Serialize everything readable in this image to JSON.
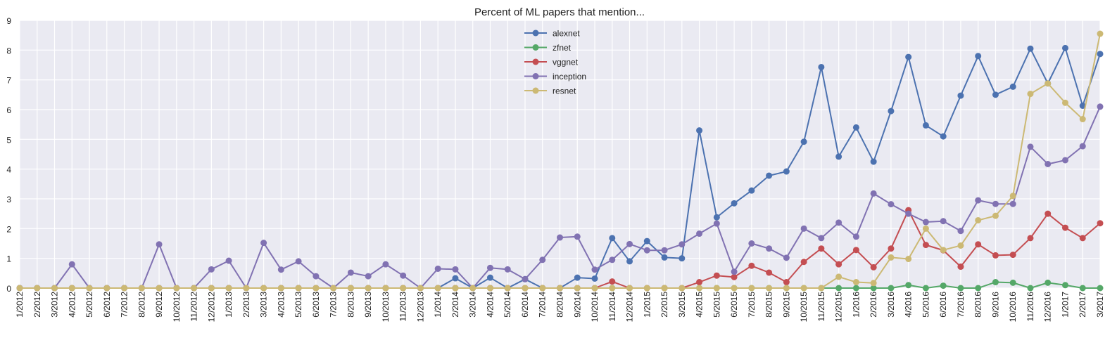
{
  "chart_data": {
    "type": "line",
    "title": "Percent of ML papers that mention...",
    "xlabel": "",
    "ylabel": "",
    "ylim": [
      0,
      9
    ],
    "yticks": [
      0,
      1,
      2,
      3,
      4,
      5,
      6,
      7,
      8,
      9
    ],
    "grid": true,
    "legend_position": "top-center",
    "categories": [
      "1/2012",
      "2/2012",
      "3/2012",
      "4/2012",
      "5/2012",
      "6/2012",
      "7/2012",
      "8/2012",
      "9/2012",
      "10/2012",
      "11/2012",
      "12/2012",
      "1/2013",
      "2/2013",
      "3/2013",
      "4/2013",
      "5/2013",
      "6/2013",
      "7/2013",
      "8/2013",
      "9/2013",
      "10/2013",
      "11/2013",
      "12/2013",
      "1/2014",
      "2/2014",
      "3/2014",
      "4/2014",
      "5/2014",
      "6/2014",
      "7/2014",
      "8/2014",
      "9/2014",
      "10/2014",
      "11/2014",
      "12/2014",
      "1/2015",
      "2/2015",
      "3/2015",
      "4/2015",
      "5/2015",
      "6/2015",
      "7/2015",
      "8/2015",
      "9/2015",
      "10/2015",
      "11/2015",
      "12/2015",
      "1/2016",
      "2/2016",
      "3/2016",
      "4/2016",
      "5/2016",
      "6/2016",
      "7/2016",
      "8/2016",
      "9/2016",
      "10/2016",
      "11/2016",
      "12/2016",
      "1/2017",
      "2/2017",
      "3/2017"
    ],
    "series": [
      {
        "name": "alexnet",
        "color": "#4c72b0",
        "values": [
          0,
          0,
          0,
          0,
          0,
          0,
          0,
          0,
          0,
          0,
          0,
          0,
          0,
          0,
          0,
          0,
          0,
          0,
          0,
          0,
          0,
          0,
          0,
          0,
          0,
          0.33,
          0,
          0.35,
          0,
          0.3,
          0,
          0,
          0.35,
          0.32,
          1.68,
          0.9,
          1.58,
          1.03,
          1.0,
          5.3,
          2.38,
          2.85,
          3.28,
          3.78,
          3.92,
          4.92,
          7.43,
          4.42,
          5.4,
          4.25,
          5.95,
          7.77,
          5.47,
          5.1,
          6.47,
          7.8,
          6.5,
          6.77,
          8.05,
          6.88,
          8.07,
          6.13,
          7.87
        ]
      },
      {
        "name": "zfnet",
        "color": "#55a868",
        "values": [
          0,
          0,
          0,
          0,
          0,
          0,
          0,
          0,
          0,
          0,
          0,
          0,
          0,
          0,
          0,
          0,
          0,
          0,
          0,
          0,
          0,
          0,
          0,
          0,
          0,
          0,
          0,
          0,
          0,
          0,
          0,
          0,
          0,
          0,
          0,
          0,
          0,
          0,
          0,
          0,
          0,
          0,
          0,
          0,
          0,
          0,
          0,
          0,
          0,
          0,
          0,
          0.1,
          0,
          0.08,
          0,
          0,
          0.2,
          0.18,
          0,
          0.18,
          0.1,
          0,
          0
        ]
      },
      {
        "name": "vggnet",
        "color": "#c44e52",
        "values": [
          0,
          0,
          0,
          0,
          0,
          0,
          0,
          0,
          0,
          0,
          0,
          0,
          0,
          0,
          0,
          0,
          0,
          0,
          0,
          0,
          0,
          0,
          0,
          0,
          0,
          0,
          0,
          0,
          0,
          0,
          0,
          0,
          0,
          0,
          0.22,
          0,
          0,
          0,
          0,
          0.2,
          0.42,
          0.37,
          0.75,
          0.52,
          0.2,
          0.88,
          1.33,
          0.8,
          1.28,
          0.7,
          1.33,
          2.62,
          1.45,
          1.27,
          0.72,
          1.47,
          1.1,
          1.12,
          1.68,
          2.5,
          2.03,
          1.68,
          2.18
        ]
      },
      {
        "name": "inception",
        "color": "#8172b2",
        "values": [
          0,
          0,
          0,
          0.8,
          0,
          0,
          0,
          0,
          1.47,
          0,
          0,
          0.63,
          0.92,
          0,
          1.52,
          0.62,
          0.9,
          0.4,
          0,
          0.52,
          0.4,
          0.8,
          0.42,
          0,
          0.65,
          0.63,
          0,
          0.68,
          0.63,
          0.3,
          0.95,
          1.7,
          1.73,
          0.62,
          0.95,
          1.48,
          1.27,
          1.27,
          1.47,
          1.83,
          2.17,
          0.55,
          1.5,
          1.33,
          1.02,
          2.0,
          1.68,
          2.2,
          1.73,
          3.18,
          2.82,
          2.5,
          2.22,
          2.25,
          1.92,
          2.95,
          2.83,
          2.83,
          4.75,
          4.17,
          4.3,
          4.77,
          6.1
        ]
      },
      {
        "name": "resnet",
        "color": "#ccb974",
        "values": [
          0,
          0,
          0,
          0,
          0,
          0,
          0,
          0,
          0,
          0,
          0,
          0,
          0,
          0,
          0,
          0,
          0,
          0,
          0,
          0,
          0,
          0,
          0,
          0,
          0,
          0,
          0,
          0,
          0,
          0,
          0,
          0,
          0,
          0,
          0,
          0,
          0,
          0,
          0,
          0,
          0,
          0,
          0,
          0,
          0,
          0,
          0,
          0.38,
          0.2,
          0.17,
          1.03,
          0.98,
          2.0,
          1.28,
          1.43,
          2.28,
          2.43,
          3.1,
          6.53,
          6.88,
          6.23,
          5.68,
          8.55
        ]
      }
    ]
  }
}
